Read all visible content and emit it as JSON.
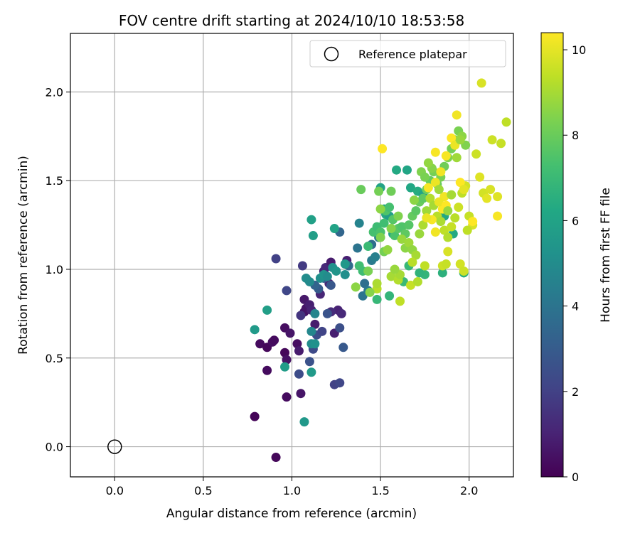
{
  "chart_data": {
    "type": "scatter",
    "title": "FOV centre drift starting at 2024/10/10 18:53:58",
    "xlabel": "Angular distance from reference (arcmin)",
    "ylabel": "Rotation from reference (arcmin)",
    "xlim": [
      -0.25,
      2.25
    ],
    "ylim": [
      -0.17,
      2.33
    ],
    "xticks": [
      "0.0",
      "0.5",
      "1.0",
      "1.5",
      "2.0"
    ],
    "xtick_values": [
      0,
      0.5,
      1.0,
      1.5,
      2.0
    ],
    "yticks": [
      "0.0",
      "0.5",
      "1.0",
      "1.5",
      "2.0"
    ],
    "ytick_values": [
      0,
      0.5,
      1.0,
      1.5,
      2.0
    ],
    "grid": true,
    "legend": {
      "position": "top-right",
      "label": "Reference platepar"
    },
    "reference_point": {
      "x": 0.0,
      "y": 0.0
    },
    "colorbar": {
      "label": "Hours from first FF file",
      "colormap": "viridis",
      "range": [
        0,
        10.4
      ],
      "ticks": [
        "0",
        "2",
        "4",
        "6",
        "8",
        "10"
      ],
      "tick_values": [
        0,
        2,
        4,
        6,
        8,
        10
      ]
    },
    "points": [
      [
        0.79,
        0.17,
        0.1
      ],
      [
        0.91,
        -0.06,
        0.2
      ],
      [
        0.82,
        0.58,
        0.3
      ],
      [
        0.86,
        0.56,
        0.2
      ],
      [
        0.86,
        0.43,
        0.3
      ],
      [
        0.89,
        0.59,
        0.4
      ],
      [
        0.9,
        0.6,
        0.3
      ],
      [
        0.96,
        0.53,
        0.2
      ],
      [
        0.97,
        0.49,
        0.5
      ],
      [
        0.96,
        0.67,
        0.4
      ],
      [
        0.99,
        0.64,
        0.6
      ],
      [
        0.97,
        0.28,
        0.3
      ],
      [
        1.03,
        0.58,
        0.4
      ],
      [
        1.04,
        0.54,
        0.8
      ],
      [
        1.05,
        0.3,
        0.6
      ],
      [
        1.07,
        0.76,
        0.5
      ],
      [
        1.07,
        0.83,
        0.7
      ],
      [
        1.08,
        0.78,
        0.6
      ],
      [
        1.1,
        0.8,
        0.9
      ],
      [
        1.11,
        0.77,
        1.0
      ],
      [
        1.13,
        0.69,
        0.8
      ],
      [
        1.16,
        0.86,
        1.1
      ],
      [
        1.18,
        0.99,
        0.9
      ],
      [
        1.19,
        1.01,
        1.2
      ],
      [
        1.21,
        0.92,
        1.0
      ],
      [
        1.22,
        1.04,
        0.8
      ],
      [
        1.24,
        0.64,
        0.9
      ],
      [
        1.26,
        0.77,
        1.0
      ],
      [
        1.28,
        0.75,
        1.2
      ],
      [
        1.22,
        0.76,
        1.3
      ],
      [
        1.31,
        1.05,
        0.9
      ],
      [
        1.05,
        0.74,
        1.6
      ],
      [
        1.06,
        1.02,
        1.8
      ],
      [
        0.91,
        1.06,
        2.0
      ],
      [
        0.97,
        0.88,
        2.2
      ],
      [
        1.04,
        0.41,
        2.4
      ],
      [
        1.1,
        0.48,
        2.6
      ],
      [
        1.12,
        0.55,
        2.3
      ],
      [
        1.14,
        0.63,
        2.5
      ],
      [
        1.17,
        0.65,
        2.1
      ],
      [
        1.2,
        0.75,
        2.7
      ],
      [
        1.24,
        0.35,
        2.0
      ],
      [
        1.27,
        0.36,
        2.2
      ],
      [
        1.27,
        0.67,
        2.5
      ],
      [
        1.29,
        0.56,
        2.9
      ],
      [
        1.22,
        0.91,
        2.8
      ],
      [
        1.15,
        0.89,
        3.0
      ],
      [
        1.18,
        0.95,
        3.2
      ],
      [
        1.13,
        0.91,
        3.3
      ],
      [
        1.27,
        1.21,
        3.4
      ],
      [
        1.32,
        1.02,
        3.6
      ],
      [
        1.37,
        1.12,
        4.0
      ],
      [
        1.4,
        0.85,
        4.0
      ],
      [
        1.41,
        0.92,
        3.8
      ],
      [
        1.43,
        0.88,
        4.2
      ],
      [
        1.45,
        1.14,
        3.7
      ],
      [
        1.45,
        1.05,
        4.3
      ],
      [
        1.47,
        1.07,
        4.5
      ],
      [
        1.49,
        1.18,
        4.4
      ],
      [
        1.38,
        1.26,
        4.6
      ],
      [
        1.1,
        0.93,
        4.9
      ],
      [
        1.08,
        0.95,
        5.0
      ],
      [
        1.11,
        0.65,
        4.8
      ],
      [
        1.11,
        0.58,
        5.0
      ],
      [
        1.13,
        0.58,
        5.2
      ],
      [
        1.13,
        0.75,
        4.7
      ],
      [
        1.16,
        0.95,
        5.1
      ],
      [
        1.18,
        0.97,
        5.3
      ],
      [
        1.2,
        0.96,
        5.0
      ],
      [
        1.23,
        1.01,
        5.2
      ],
      [
        1.25,
        0.99,
        5.4
      ],
      [
        1.3,
        0.97,
        5.1
      ],
      [
        1.3,
        1.03,
        5.5
      ],
      [
        1.07,
        0.14,
        5.5
      ],
      [
        0.96,
        0.45,
        5.7
      ],
      [
        1.11,
        0.42,
        5.6
      ],
      [
        0.86,
        0.77,
        5.8
      ],
      [
        0.79,
        0.66,
        5.6
      ],
      [
        1.11,
        1.28,
        5.9
      ],
      [
        1.12,
        1.19,
        5.8
      ],
      [
        1.24,
        1.23,
        6.0
      ],
      [
        1.5,
        1.46,
        6.0
      ],
      [
        1.52,
        1.34,
        6.1
      ],
      [
        1.53,
        1.31,
        6.2
      ],
      [
        1.55,
        1.3,
        5.8
      ],
      [
        1.57,
        1.2,
        6.0
      ],
      [
        1.59,
        1.56,
        6.3
      ],
      [
        1.65,
        1.56,
        6.1
      ],
      [
        1.67,
        1.46,
        6.2
      ],
      [
        1.71,
        1.44,
        6.4
      ],
      [
        1.74,
        1.42,
        6.0
      ],
      [
        1.86,
        1.3,
        6.2
      ],
      [
        1.91,
        1.2,
        6.3
      ],
      [
        1.97,
        0.98,
        6.5
      ],
      [
        1.85,
        0.98,
        6.6
      ],
      [
        1.75,
        0.97,
        6.8
      ],
      [
        1.72,
        0.98,
        6.7
      ],
      [
        1.66,
        1.02,
        6.9
      ],
      [
        1.63,
        0.93,
        7.0
      ],
      [
        1.55,
        0.85,
        6.8
      ],
      [
        1.48,
        0.83,
        6.9
      ],
      [
        1.4,
        0.99,
        7.1
      ],
      [
        1.38,
        1.02,
        7.2
      ],
      [
        1.43,
        1.13,
        7.0
      ],
      [
        1.46,
        1.21,
        7.3
      ],
      [
        1.48,
        1.24,
        7.1
      ],
      [
        1.5,
        1.21,
        7.4
      ],
      [
        1.52,
        1.26,
        7.2
      ],
      [
        1.53,
        1.33,
        7.5
      ],
      [
        1.55,
        1.35,
        7.3
      ],
      [
        1.57,
        1.28,
        7.6
      ],
      [
        1.58,
        1.19,
        7.4
      ],
      [
        1.6,
        1.23,
        7.7
      ],
      [
        1.62,
        1.24,
        7.5
      ],
      [
        1.64,
        1.2,
        7.8
      ],
      [
        1.66,
        1.25,
        7.6
      ],
      [
        1.68,
        1.3,
        7.9
      ],
      [
        1.7,
        1.33,
        7.7
      ],
      [
        1.72,
        1.38,
        8.0
      ],
      [
        1.74,
        1.4,
        7.8
      ],
      [
        1.76,
        1.45,
        8.1
      ],
      [
        1.78,
        1.5,
        7.9
      ],
      [
        1.8,
        1.55,
        8.2
      ],
      [
        1.82,
        1.48,
        8.0
      ],
      [
        1.84,
        1.52,
        8.3
      ],
      [
        1.86,
        1.58,
        8.1
      ],
      [
        1.88,
        1.63,
        8.4
      ],
      [
        1.9,
        1.68,
        8.2
      ],
      [
        1.92,
        1.73,
        8.5
      ],
      [
        1.94,
        1.78,
        8.3
      ],
      [
        1.96,
        1.75,
        8.6
      ],
      [
        1.98,
        1.7,
        8.4
      ],
      [
        1.39,
        1.45,
        8.0
      ],
      [
        1.49,
        1.44,
        8.2
      ],
      [
        1.56,
        1.44,
        8.1
      ],
      [
        1.5,
        1.34,
        8.6
      ],
      [
        1.6,
        1.3,
        8.4
      ],
      [
        1.62,
        1.17,
        8.8
      ],
      [
        1.64,
        1.12,
        8.6
      ],
      [
        1.66,
        1.15,
        8.9
      ],
      [
        1.68,
        1.11,
        8.7
      ],
      [
        1.7,
        1.08,
        9.0
      ],
      [
        1.72,
        1.2,
        8.8
      ],
      [
        1.74,
        1.25,
        9.1
      ],
      [
        1.76,
        1.33,
        8.9
      ],
      [
        1.78,
        1.4,
        9.2
      ],
      [
        1.8,
        1.36,
        9.0
      ],
      [
        1.82,
        1.3,
        9.3
      ],
      [
        1.84,
        1.27,
        9.1
      ],
      [
        1.86,
        1.22,
        9.4
      ],
      [
        1.88,
        1.18,
        9.2
      ],
      [
        1.9,
        1.24,
        9.5
      ],
      [
        1.92,
        1.29,
        9.3
      ],
      [
        1.94,
        1.35,
        9.6
      ],
      [
        1.96,
        1.43,
        9.4
      ],
      [
        1.98,
        1.47,
        9.7
      ],
      [
        2.0,
        1.3,
        9.5
      ],
      [
        2.02,
        1.25,
        9.8
      ],
      [
        2.04,
        1.65,
        9.6
      ],
      [
        2.06,
        1.52,
        9.9
      ],
      [
        2.08,
        1.43,
        9.7
      ],
      [
        2.1,
        1.4,
        10.0
      ],
      [
        2.12,
        1.45,
        9.8
      ],
      [
        2.13,
        1.73,
        9.6
      ],
      [
        2.16,
        1.41,
        9.9
      ],
      [
        2.18,
        1.71,
        9.5
      ],
      [
        2.21,
        1.83,
        9.4
      ],
      [
        2.07,
        2.05,
        9.8
      ],
      [
        1.93,
        1.87,
        10.2
      ],
      [
        1.81,
        1.66,
        10.3
      ],
      [
        1.9,
        1.74,
        10.4
      ],
      [
        1.92,
        1.7,
        10.1
      ],
      [
        1.87,
        1.64,
        10.3
      ],
      [
        1.84,
        1.55,
        10.2
      ],
      [
        1.95,
        1.49,
        10.4
      ],
      [
        1.97,
        1.45,
        10.0
      ],
      [
        1.81,
        1.49,
        10.1
      ],
      [
        1.77,
        1.46,
        10.3
      ],
      [
        1.86,
        1.41,
        10.2
      ],
      [
        1.85,
        1.34,
        10.4
      ],
      [
        1.83,
        1.38,
        10.1
      ],
      [
        1.79,
        1.28,
        10.3
      ],
      [
        1.81,
        1.21,
        10.2
      ],
      [
        1.87,
        1.36,
        10.4
      ],
      [
        1.51,
        1.68,
        10.4
      ],
      [
        1.76,
        1.29,
        10.1
      ],
      [
        2.16,
        1.3,
        10.3
      ],
      [
        2.02,
        1.27,
        10.4
      ],
      [
        1.48,
        0.89,
        9.3
      ],
      [
        1.48,
        0.92,
        9.1
      ],
      [
        1.56,
        0.96,
        9.0
      ],
      [
        1.6,
        0.94,
        9.2
      ],
      [
        1.61,
        0.82,
        9.4
      ],
      [
        1.61,
        0.97,
        9.0
      ],
      [
        1.67,
        0.91,
        9.5
      ],
      [
        1.68,
        1.04,
        9.3
      ],
      [
        1.71,
        0.93,
        9.2
      ],
      [
        1.75,
        1.02,
        9.4
      ],
      [
        1.85,
        1.02,
        9.6
      ],
      [
        1.87,
        1.03,
        9.5
      ],
      [
        1.88,
        1.1,
        9.8
      ],
      [
        1.95,
        1.03,
        9.7
      ],
      [
        1.97,
        0.99,
        9.6
      ],
      [
        1.99,
        1.22,
        9.4
      ],
      [
        1.36,
        0.9,
        8.6
      ],
      [
        1.43,
        0.99,
        8.3
      ],
      [
        1.44,
        0.87,
        8.5
      ],
      [
        1.5,
        1.18,
        8.4
      ],
      [
        1.52,
        1.1,
        8.2
      ],
      [
        1.54,
        1.11,
        8.7
      ],
      [
        1.56,
        1.23,
        8.5
      ],
      [
        1.58,
        1.0,
        8.8
      ],
      [
        1.69,
        1.39,
        8.6
      ],
      [
        1.73,
        1.55,
        8.4
      ],
      [
        1.75,
        1.52,
        8.3
      ],
      [
        1.79,
        1.57,
        8.5
      ],
      [
        1.77,
        1.6,
        8.7
      ],
      [
        1.83,
        1.45,
        8.9
      ],
      [
        1.88,
        1.33,
        8.8
      ],
      [
        1.9,
        1.42,
        9.0
      ],
      [
        1.93,
        1.63,
        8.9
      ],
      [
        1.95,
        1.73,
        8.8
      ]
    ]
  }
}
